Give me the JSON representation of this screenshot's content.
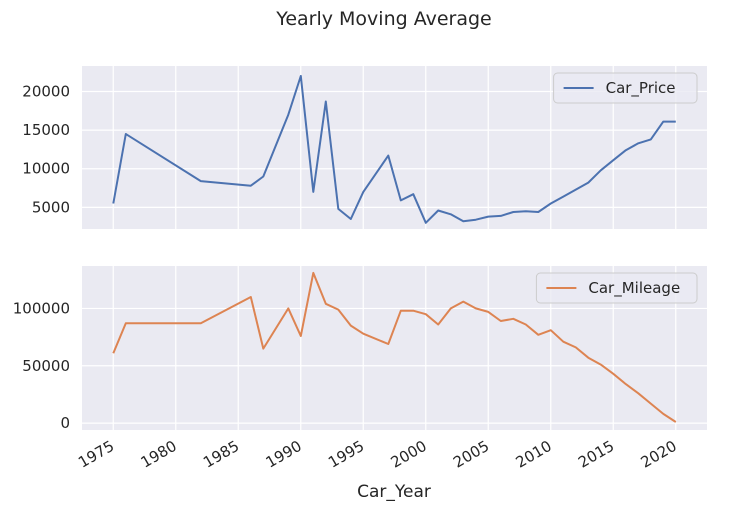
{
  "figure": {
    "title": "Yearly Moving Average",
    "xlabel": "Car_Year"
  },
  "colors": {
    "background": "#eaeaf2",
    "grid": "#ffffff",
    "price": "#4c72b0",
    "mileage": "#dd8452"
  },
  "chart_data": [
    {
      "type": "line",
      "title": "",
      "xlabel": "Car_Year",
      "ylabel": "",
      "xlim": [
        1972.5,
        2022.5
      ],
      "ylim": [
        2200,
        23300
      ],
      "grid": true,
      "legend": "top-right",
      "xticks": [
        1975,
        1980,
        1985,
        1990,
        1995,
        2000,
        2005,
        2010,
        2015,
        2020
      ],
      "yticks": [
        5000,
        10000,
        15000,
        20000
      ],
      "ytick_labels": [
        "5000",
        "10000",
        "15000",
        "20000"
      ],
      "series": [
        {
          "name": "Car_Price",
          "x": [
            1975,
            1976,
            1982,
            1986,
            1987,
            1989,
            1990,
            1991,
            1992,
            1993,
            1994,
            1995,
            1997,
            1998,
            1999,
            2000,
            2001,
            2002,
            2003,
            2004,
            2005,
            2006,
            2007,
            2008,
            2009,
            2010,
            2011,
            2012,
            2013,
            2014,
            2015,
            2016,
            2017,
            2018,
            2019,
            2020
          ],
          "y": [
            5500,
            14500,
            8400,
            7800,
            9000,
            17000,
            22000,
            7000,
            18700,
            4800,
            3500,
            7000,
            11700,
            5900,
            6700,
            3000,
            4600,
            4100,
            3200,
            3400,
            3800,
            3900,
            4400,
            4500,
            4400,
            5500,
            6400,
            7300,
            8200,
            9800,
            11100,
            12400,
            13300,
            13800,
            16100,
            16100
          ]
        }
      ]
    },
    {
      "type": "line",
      "title": "",
      "xlabel": "Car_Year",
      "ylabel": "",
      "xlim": [
        1972.5,
        2022.5
      ],
      "ylim": [
        -6000,
        137000
      ],
      "grid": true,
      "legend": "top-right",
      "xticks": [
        1975,
        1980,
        1985,
        1990,
        1995,
        2000,
        2005,
        2010,
        2015,
        2020
      ],
      "yticks": [
        0,
        50000,
        100000
      ],
      "ytick_labels": [
        "0",
        "50000",
        "100000"
      ],
      "series": [
        {
          "name": "Car_Mileage",
          "x": [
            1975,
            1976,
            1982,
            1986,
            1987,
            1989,
            1990,
            1991,
            1992,
            1993,
            1994,
            1995,
            1997,
            1998,
            1999,
            2000,
            2001,
            2002,
            2003,
            2004,
            2005,
            2006,
            2007,
            2008,
            2009,
            2010,
            2011,
            2012,
            2013,
            2014,
            2015,
            2016,
            2017,
            2018,
            2019,
            2020
          ],
          "y": [
            61000,
            87000,
            87000,
            110000,
            65000,
            100000,
            76000,
            131000,
            104000,
            99000,
            85000,
            78000,
            69000,
            98000,
            98000,
            95000,
            86000,
            100000,
            106000,
            100000,
            97000,
            89000,
            91000,
            86000,
            77000,
            81000,
            71000,
            66000,
            57000,
            51000,
            43000,
            34000,
            26000,
            17000,
            8000,
            1000
          ]
        }
      ]
    }
  ]
}
